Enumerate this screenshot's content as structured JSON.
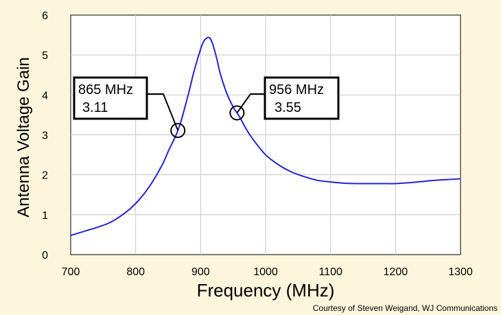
{
  "chart_data": {
    "type": "line",
    "xlabel": "Frequency (MHz)",
    "ylabel": "Antenna Voltage Gain",
    "xlim": [
      700,
      1300
    ],
    "ylim": [
      0,
      6
    ],
    "x_ticks": [
      "700",
      "800",
      "900",
      "1000",
      "1100",
      "1200",
      "1300"
    ],
    "y_ticks": [
      "0",
      "1",
      "2",
      "3",
      "4",
      "5",
      "6"
    ],
    "grid": true,
    "series": [
      {
        "name": "Antenna Voltage Gain",
        "color": "#2323d2",
        "x": [
          700,
          720,
          740,
          760,
          780,
          800,
          820,
          840,
          850,
          860,
          865,
          870,
          880,
          890,
          900,
          905,
          910,
          913,
          916,
          920,
          925,
          930,
          940,
          950,
          956,
          960,
          970,
          980,
          1000,
          1020,
          1040,
          1060,
          1080,
          1100,
          1120,
          1140,
          1160,
          1180,
          1200,
          1220,
          1240,
          1260,
          1280,
          1300
        ],
        "y": [
          0.48,
          0.58,
          0.68,
          0.8,
          1.0,
          1.28,
          1.68,
          2.22,
          2.58,
          2.92,
          3.11,
          3.35,
          3.95,
          4.6,
          5.15,
          5.35,
          5.43,
          5.44,
          5.38,
          5.2,
          4.9,
          4.55,
          4.05,
          3.7,
          3.55,
          3.45,
          3.15,
          2.9,
          2.5,
          2.25,
          2.07,
          1.95,
          1.86,
          1.82,
          1.79,
          1.78,
          1.78,
          1.78,
          1.78,
          1.8,
          1.83,
          1.86,
          1.88,
          1.9
        ]
      }
    ],
    "annotations": [
      {
        "freq_label": "865 MHz",
        "gain_label": "3.11",
        "x": 865,
        "y": 3.11
      },
      {
        "freq_label": "956 MHz",
        "gain_label": "3.55",
        "x": 956,
        "y": 3.55
      }
    ]
  },
  "credit": "Courtesy of Steven Weigand, WJ Communications",
  "colors": {
    "background": "#fdf5dc",
    "plot_area": "#ffffff",
    "grid": "#c8c8c8",
    "line": "#2323d2"
  }
}
